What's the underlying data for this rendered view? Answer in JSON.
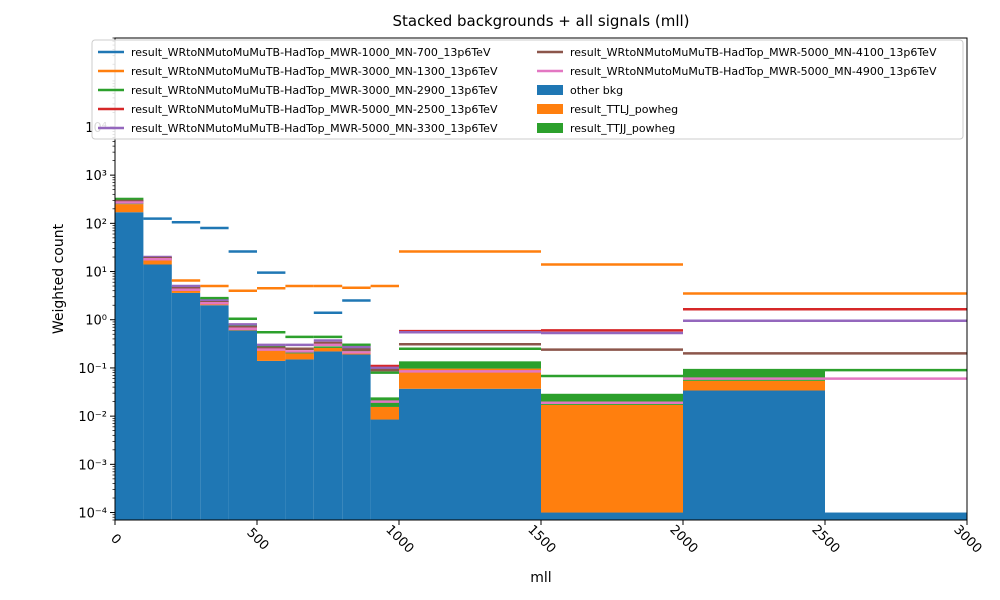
{
  "chart_data": {
    "type": "bar",
    "title": "Stacked backgrounds + all signals (mll)",
    "xlabel": "mll",
    "ylabel": "Weighted count",
    "xlim": [
      0,
      3000
    ],
    "ylim": [
      7e-05,
      700000
    ],
    "yscale": "log",
    "grid": false,
    "legend_position": "top",
    "xticks": [
      0,
      500,
      1000,
      1500,
      2000,
      2500,
      3000
    ],
    "xtick_labels": [
      "0",
      "500",
      "1000",
      "1500",
      "2000",
      "2500",
      "3000"
    ],
    "yticks": [
      0.0001,
      0.001,
      0.01,
      0.1,
      1,
      10,
      100,
      1000,
      10000
    ],
    "ytick_labels": [
      "10⁻⁴",
      "10⁻³",
      "10⁻²",
      "10⁻¹",
      "10⁰",
      "10¹",
      "10²",
      "10³",
      "10⁴"
    ],
    "bin_edges": [
      0,
      100,
      200,
      300,
      400,
      500,
      600,
      700,
      800,
      900,
      1000,
      1500,
      2000,
      2500,
      3000
    ],
    "backgrounds": [
      {
        "name": "other bkg",
        "color": "#1f77b4",
        "values": [
          170,
          14,
          3.6,
          2.0,
          0.6,
          0.14,
          0.15,
          0.22,
          0.19,
          0.0085,
          0.037,
          0.0001,
          0.034,
          0.0001
        ]
      },
      {
        "name": "result_TTLJ_powheg",
        "color": "#ff7f0e",
        "values": [
          80,
          4,
          0.8,
          0.3,
          0.12,
          0.11,
          0.05,
          0.04,
          0.03,
          0.007,
          0.06,
          0.017,
          0.02,
          0
        ]
      },
      {
        "name": "result_TTJJ_powheg",
        "color": "#2ca02c",
        "values": [
          90,
          2,
          0.6,
          0.5,
          0.1,
          0.04,
          0.03,
          0.02,
          0.1,
          0.009,
          0.04,
          0.012,
          0.034,
          0
        ]
      }
    ],
    "signals": [
      {
        "name": "result_WRtoNMutoMuMuTB-HadTop_MWR-1000_MN-700_13p6TeV",
        "color": "#1f77b4",
        "values": [
          null,
          125,
          105,
          80,
          26,
          9.5,
          null,
          1.4,
          2.5,
          null,
          null,
          null,
          null,
          null
        ]
      },
      {
        "name": "result_WRtoNMutoMuMuTB-HadTop_MWR-3000_MN-1300_13p6TeV",
        "color": "#ff7f0e",
        "values": [
          null,
          null,
          6.5,
          5.0,
          4.0,
          4.5,
          5.0,
          5.0,
          4.6,
          5.0,
          26,
          14,
          3.5,
          3.5
        ]
      },
      {
        "name": "result_WRtoNMutoMuMuTB-HadTop_MWR-3000_MN-2900_13p6TeV",
        "color": "#2ca02c",
        "values": [
          null,
          null,
          null,
          2.8,
          1.05,
          0.55,
          0.44,
          0.44,
          0.3,
          0.08,
          0.25,
          0.068,
          0.09,
          0.09
        ]
      },
      {
        "name": "result_WRtoNMutoMuMuTB-HadTop_MWR-5000_MN-2500_13p6TeV",
        "color": "#d62728",
        "values": [
          null,
          null,
          null,
          null,
          null,
          null,
          null,
          null,
          null,
          0.11,
          0.58,
          0.6,
          1.65,
          1.65
        ]
      },
      {
        "name": "result_WRtoNMutoMuMuTB-HadTop_MWR-5000_MN-3300_13p6TeV",
        "color": "#9467bd",
        "values": [
          280,
          20,
          5.0,
          2.5,
          0.8,
          0.3,
          0.3,
          0.37,
          0.27,
          0.1,
          0.55,
          0.53,
          0.95,
          0.95
        ]
      },
      {
        "name": "result_WRtoNMutoMuMuTB-HadTop_MWR-5000_MN-4100_13p6TeV",
        "color": "#8c564b",
        "values": [
          290,
          19,
          4.5,
          2.3,
          0.7,
          0.26,
          0.25,
          0.33,
          0.24,
          0.09,
          0.31,
          0.24,
          0.2,
          0.2
        ]
      },
      {
        "name": "result_WRtoNMutoMuMuTB-HadTop_MWR-5000_MN-4900_13p6TeV",
        "color": "#e377c2",
        "values": [
          270,
          18,
          4.2,
          2.2,
          0.65,
          0.24,
          0.22,
          0.3,
          0.21,
          0.02,
          0.085,
          0.019,
          0.06,
          0.06
        ]
      }
    ]
  }
}
